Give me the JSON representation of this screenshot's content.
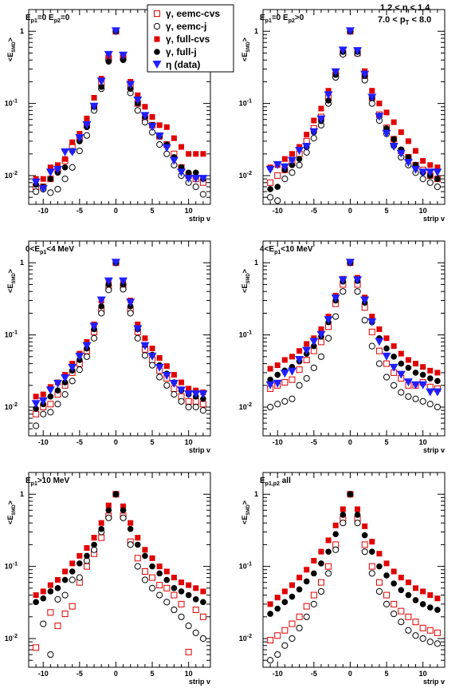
{
  "header": {
    "cut_eta": "1.2 < η < 1.4",
    "cut_pt": "7.0 < p_T < 8.0"
  },
  "legend": {
    "entries": [
      {
        "label": "γ, eemc-cvs",
        "marker": "open-square",
        "color": "#e00000"
      },
      {
        "label": "γ, eemc-j",
        "marker": "open-circle",
        "color": "#000000"
      },
      {
        "label": "γ, full-cvs",
        "marker": "filled-square",
        "color": "#e00000"
      },
      {
        "label": "γ, full-j",
        "marker": "filled-circle",
        "color": "#000000"
      },
      {
        "label": "η (data)",
        "marker": "filled-triangle-down",
        "color": "#1f1fff"
      }
    ]
  },
  "chart_data": [
    {
      "type": "scatter",
      "title": "E_p1=0 E_p2=0",
      "xlabel": "strip v",
      "ylabel": "<E_SMD>",
      "xlim": [
        -12,
        13
      ],
      "ylim": [
        0.004,
        2
      ],
      "yscale": "log",
      "x": [
        -11,
        -10,
        -9,
        -8,
        -7,
        -6,
        -5,
        -4,
        -3,
        -2,
        -1,
        0,
        1,
        2,
        3,
        4,
        5,
        6,
        7,
        8,
        9,
        10,
        11,
        12
      ],
      "series": [
        {
          "name": "γ, eemc-cvs",
          "values": [
            0.007,
            0.007,
            0.009,
            0.012,
            0.016,
            0.025,
            0.033,
            0.05,
            0.09,
            0.19,
            0.42,
            1.0,
            0.43,
            0.17,
            0.1,
            0.062,
            0.05,
            0.035,
            0.027,
            0.02,
            0.013,
            0.01,
            0.009,
            0.008
          ]
        },
        {
          "name": "γ, eemc-j",
          "values": [
            0.006,
            0.0065,
            0.0058,
            0.0065,
            0.009,
            0.013,
            0.022,
            0.036,
            0.08,
            0.16,
            0.4,
            1.0,
            0.41,
            0.14,
            0.08,
            0.055,
            0.04,
            0.027,
            0.02,
            0.014,
            0.01,
            0.008,
            0.007,
            0.0055
          ]
        },
        {
          "name": "γ, full-cvs",
          "values": [
            0.009,
            0.009,
            0.013,
            0.014,
            0.017,
            0.029,
            0.038,
            0.062,
            0.12,
            0.22,
            0.45,
            1.0,
            0.45,
            0.2,
            0.13,
            0.09,
            0.065,
            0.05,
            0.047,
            0.033,
            0.025,
            0.02,
            0.02,
            0.02
          ]
        },
        {
          "name": "γ, full-j",
          "values": [
            0.0075,
            0.007,
            0.009,
            0.011,
            0.013,
            0.022,
            0.03,
            0.047,
            0.09,
            0.17,
            0.38,
            1.0,
            0.4,
            0.16,
            0.1,
            0.065,
            0.05,
            0.035,
            0.027,
            0.018,
            0.013,
            0.011,
            0.011,
            0.009
          ]
        },
        {
          "name": "η (data)",
          "values": [
            0.008,
            0.0065,
            0.011,
            0.012,
            0.021,
            0.021,
            0.033,
            0.05,
            0.09,
            0.2,
            0.47,
            1.0,
            0.46,
            0.18,
            0.11,
            0.067,
            0.047,
            0.035,
            0.024,
            0.016,
            0.011,
            0.009,
            0.009,
            0.009
          ]
        }
      ]
    },
    {
      "type": "scatter",
      "title": "E_p1=0 E_p2>0",
      "xlabel": "strip v",
      "ylabel": "<E_SMD>",
      "xlim": [
        -12,
        13
      ],
      "ylim": [
        0.004,
        2
      ],
      "yscale": "log",
      "x": [
        -11,
        -10,
        -9,
        -8,
        -7,
        -6,
        -5,
        -4,
        -3,
        -2,
        -1,
        0,
        1,
        2,
        3,
        4,
        5,
        6,
        7,
        8,
        9,
        10,
        11,
        12
      ],
      "series": [
        {
          "name": "γ, eemc-cvs",
          "values": [
            0.008,
            0.01,
            0.012,
            0.015,
            0.02,
            0.03,
            0.045,
            0.065,
            0.12,
            0.25,
            0.5,
            1.0,
            0.5,
            0.24,
            0.12,
            0.07,
            0.046,
            0.032,
            0.022,
            0.018,
            0.014,
            0.012,
            0.01,
            0.009
          ]
        },
        {
          "name": "γ, eemc-j",
          "values": [
            0.005,
            0.0045,
            0.009,
            0.011,
            0.014,
            0.021,
            0.033,
            0.05,
            0.1,
            0.23,
            0.48,
            1.0,
            0.49,
            0.21,
            0.1,
            0.058,
            0.038,
            0.026,
            0.018,
            0.014,
            0.011,
            0.009,
            0.008,
            0.007
          ]
        },
        {
          "name": "γ, full-cvs",
          "values": [
            0.013,
            0.014,
            0.017,
            0.02,
            0.025,
            0.037,
            0.058,
            0.085,
            0.15,
            0.28,
            0.55,
            1.0,
            0.55,
            0.28,
            0.15,
            0.1,
            0.075,
            0.055,
            0.04,
            0.03,
            0.022,
            0.016,
            0.014,
            0.013
          ]
        },
        {
          "name": "γ, full-j",
          "values": [
            0.0065,
            0.007,
            0.012,
            0.014,
            0.017,
            0.025,
            0.04,
            0.057,
            0.11,
            0.25,
            0.52,
            1.0,
            0.52,
            0.24,
            0.12,
            0.068,
            0.045,
            0.032,
            0.023,
            0.018,
            0.014,
            0.011,
            0.01,
            0.009
          ]
        },
        {
          "name": "η (data)",
          "values": [
            0.012,
            0.014,
            0.013,
            0.016,
            0.022,
            0.025,
            0.04,
            0.06,
            0.13,
            0.27,
            0.54,
            1.0,
            0.53,
            0.25,
            0.12,
            0.065,
            0.038,
            0.025,
            0.02,
            0.015,
            0.012,
            0.011,
            0.011,
            0.011
          ]
        }
      ]
    },
    {
      "type": "scatter",
      "title": "0<E_p1<4 MeV",
      "xlabel": "strip v",
      "ylabel": "<E_SMD>",
      "xlim": [
        -12,
        13
      ],
      "ylim": [
        0.004,
        2
      ],
      "yscale": "log",
      "x": [
        -11,
        -10,
        -9,
        -8,
        -7,
        -6,
        -5,
        -4,
        -3,
        -2,
        -1,
        0,
        1,
        2,
        3,
        4,
        5,
        6,
        7,
        8,
        9,
        10,
        11,
        12
      ],
      "series": [
        {
          "name": "γ, eemc-cvs",
          "values": [
            0.008,
            0.01,
            0.011,
            0.015,
            0.02,
            0.03,
            0.04,
            0.06,
            0.11,
            0.22,
            0.46,
            1.0,
            0.47,
            0.22,
            0.11,
            0.063,
            0.045,
            0.032,
            0.025,
            0.018,
            0.014,
            0.012,
            0.012,
            0.011
          ]
        },
        {
          "name": "γ, eemc-j",
          "values": [
            0.0055,
            0.008,
            0.0085,
            0.011,
            0.015,
            0.023,
            0.033,
            0.05,
            0.09,
            0.2,
            0.42,
            1.0,
            0.43,
            0.2,
            0.09,
            0.052,
            0.038,
            0.026,
            0.02,
            0.015,
            0.012,
            0.01,
            0.01,
            0.009
          ]
        },
        {
          "name": "γ, full-cvs",
          "values": [
            0.014,
            0.015,
            0.019,
            0.022,
            0.028,
            0.04,
            0.055,
            0.08,
            0.14,
            0.3,
            0.55,
            1.0,
            0.55,
            0.3,
            0.14,
            0.09,
            0.065,
            0.048,
            0.037,
            0.028,
            0.022,
            0.018,
            0.017,
            0.016
          ]
        },
        {
          "name": "γ, full-j",
          "values": [
            0.0095,
            0.011,
            0.014,
            0.017,
            0.022,
            0.032,
            0.045,
            0.065,
            0.12,
            0.25,
            0.5,
            1.0,
            0.5,
            0.25,
            0.12,
            0.072,
            0.053,
            0.038,
            0.029,
            0.022,
            0.017,
            0.015,
            0.014,
            0.013
          ]
        },
        {
          "name": "η (data)",
          "values": [
            0.011,
            0.012,
            0.017,
            0.021,
            0.025,
            0.035,
            0.05,
            0.07,
            0.13,
            0.3,
            0.55,
            1.0,
            0.55,
            0.28,
            0.12,
            0.07,
            0.05,
            0.035,
            0.027,
            0.021,
            0.017,
            0.015,
            0.015,
            0.015
          ]
        }
      ]
    },
    {
      "type": "scatter",
      "title": "4<E_p1<10 MeV",
      "xlabel": "strip v",
      "ylabel": "<E_SMD>",
      "xlim": [
        -12,
        13
      ],
      "ylim": [
        0.004,
        2
      ],
      "yscale": "log",
      "x": [
        -11,
        -10,
        -9,
        -8,
        -7,
        -6,
        -5,
        -4,
        -3,
        -2,
        -1,
        0,
        1,
        2,
        3,
        4,
        5,
        6,
        7,
        8,
        9,
        10,
        11,
        12
      ],
      "series": [
        {
          "name": "γ, eemc-cvs",
          "values": [
            0.018,
            0.02,
            0.022,
            0.024,
            0.033,
            0.045,
            0.06,
            0.08,
            0.13,
            0.27,
            0.5,
            1.0,
            0.5,
            0.24,
            0.11,
            0.06,
            0.04,
            0.03,
            0.025,
            0.02,
            0.02,
            0.022,
            0.019,
            0.018
          ]
        },
        {
          "name": "γ, eemc-j",
          "values": [
            0.01,
            0.011,
            0.012,
            0.013,
            0.02,
            0.025,
            0.035,
            0.05,
            0.09,
            0.18,
            0.4,
            1.0,
            0.4,
            0.16,
            0.07,
            0.04,
            0.026,
            0.02,
            0.016,
            0.014,
            0.013,
            0.012,
            0.011,
            0.01
          ]
        },
        {
          "name": "γ, full-cvs",
          "values": [
            0.034,
            0.038,
            0.045,
            0.05,
            0.06,
            0.075,
            0.09,
            0.12,
            0.18,
            0.35,
            0.6,
            1.0,
            0.62,
            0.33,
            0.18,
            0.12,
            0.09,
            0.07,
            0.055,
            0.045,
            0.04,
            0.036,
            0.032,
            0.03
          ]
        },
        {
          "name": "γ, full-j",
          "values": [
            0.024,
            0.028,
            0.032,
            0.036,
            0.043,
            0.055,
            0.07,
            0.095,
            0.15,
            0.3,
            0.55,
            1.0,
            0.56,
            0.28,
            0.15,
            0.09,
            0.065,
            0.05,
            0.04,
            0.035,
            0.03,
            0.028,
            0.025,
            0.023
          ]
        },
        {
          "name": "η (data)",
          "values": [
            0.02,
            0.021,
            0.029,
            0.031,
            0.045,
            0.06,
            0.08,
            0.1,
            0.16,
            0.32,
            0.57,
            1.0,
            0.57,
            0.3,
            0.15,
            0.08,
            0.05,
            0.035,
            0.028,
            0.022,
            0.02,
            0.02,
            0.016,
            0.016
          ]
        }
      ]
    },
    {
      "type": "scatter",
      "title": "E_p1>10 MeV",
      "xlabel": "strip v",
      "ylabel": "<E_SMD>",
      "xlim": [
        -12,
        13
      ],
      "ylim": [
        0.004,
        2
      ],
      "yscale": "log",
      "x": [
        -11,
        -10,
        -9,
        -8,
        -7,
        -6,
        -5,
        -4,
        -3,
        -2,
        -1,
        0,
        1,
        2,
        3,
        4,
        5,
        6,
        7,
        8,
        9,
        10,
        11,
        12
      ],
      "series": [
        {
          "name": "γ, eemc-cvs",
          "values": [
            0.0075,
            null,
            0.023,
            0.015,
            0.022,
            0.028,
            0.06,
            0.1,
            0.15,
            0.25,
            0.5,
            1.0,
            0.5,
            0.22,
            0.13,
            0.085,
            0.07,
            0.055,
            0.05,
            0.04,
            0.03,
            0.0065,
            0.025,
            0.02
          ]
        },
        {
          "name": "γ, eemc-j",
          "values": [
            null,
            0.016,
            0.006,
            0.035,
            0.04,
            0.065,
            0.07,
            0.12,
            0.17,
            0.3,
            0.47,
            1.0,
            0.47,
            0.2,
            0.1,
            0.065,
            0.05,
            0.04,
            0.032,
            0.025,
            0.02,
            0.015,
            0.012,
            0.01
          ]
        },
        {
          "name": "γ, full-cvs",
          "values": [
            0.04,
            0.045,
            0.055,
            0.065,
            0.085,
            0.11,
            0.14,
            0.18,
            0.25,
            0.4,
            0.7,
            1.0,
            0.68,
            0.4,
            0.25,
            0.17,
            0.13,
            0.1,
            0.085,
            0.07,
            0.06,
            0.055,
            0.05,
            0.045
          ]
        },
        {
          "name": "γ, full-j",
          "values": [
            0.032,
            0.036,
            0.045,
            0.05,
            0.065,
            0.085,
            0.11,
            0.14,
            0.2,
            0.33,
            0.6,
            1.0,
            0.6,
            0.33,
            0.2,
            0.14,
            0.1,
            0.08,
            0.065,
            0.05,
            0.045,
            0.04,
            0.035,
            0.032
          ]
        }
      ]
    },
    {
      "type": "scatter",
      "title": "E_p1,p2 all",
      "xlabel": "strip v",
      "ylabel": "<E_SMD>",
      "xlim": [
        -12,
        13
      ],
      "ylim": [
        0.004,
        2
      ],
      "yscale": "log",
      "x": [
        -11,
        -10,
        -9,
        -8,
        -7,
        -6,
        -5,
        -4,
        -3,
        -2,
        -1,
        0,
        1,
        2,
        3,
        4,
        5,
        6,
        7,
        8,
        9,
        10,
        11,
        12
      ],
      "series": [
        {
          "name": "γ, eemc-cvs",
          "values": [
            0.0095,
            0.011,
            0.013,
            0.016,
            0.02,
            0.028,
            0.04,
            0.06,
            0.1,
            0.2,
            0.45,
            1.0,
            0.46,
            0.2,
            0.1,
            0.06,
            0.04,
            0.03,
            0.024,
            0.02,
            0.017,
            0.014,
            0.013,
            0.012
          ]
        },
        {
          "name": "γ, eemc-j",
          "values": [
            0.005,
            0.006,
            0.008,
            0.01,
            0.014,
            0.02,
            0.03,
            0.045,
            0.08,
            0.17,
            0.4,
            1.0,
            0.4,
            0.16,
            0.08,
            0.045,
            0.03,
            0.022,
            0.017,
            0.013,
            0.011,
            0.01,
            0.009,
            0.0085
          ]
        },
        {
          "name": "γ, full-cvs",
          "values": [
            0.03,
            0.037,
            0.045,
            0.055,
            0.07,
            0.09,
            0.12,
            0.16,
            0.23,
            0.37,
            0.62,
            1.0,
            0.62,
            0.36,
            0.22,
            0.15,
            0.11,
            0.085,
            0.07,
            0.06,
            0.05,
            0.045,
            0.04,
            0.036
          ]
        },
        {
          "name": "γ, full-j",
          "values": [
            0.022,
            0.026,
            0.032,
            0.038,
            0.048,
            0.062,
            0.08,
            0.11,
            0.16,
            0.28,
            0.52,
            1.0,
            0.52,
            0.27,
            0.16,
            0.1,
            0.075,
            0.058,
            0.047,
            0.04,
            0.034,
            0.03,
            0.027,
            0.025
          ]
        }
      ]
    }
  ]
}
